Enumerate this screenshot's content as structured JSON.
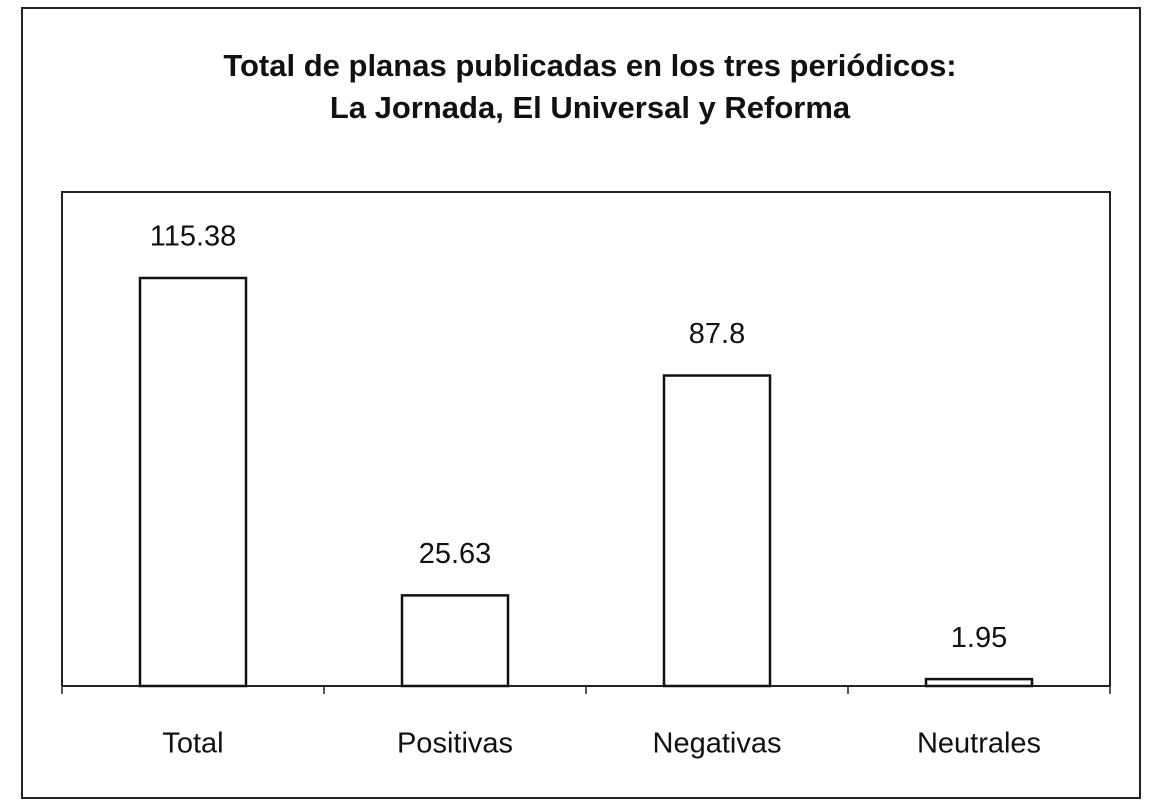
{
  "chart_data": {
    "type": "bar",
    "title": [
      "Total de planas publicadas en los tres periódicos:",
      "La Jornada, El Universal y Reforma"
    ],
    "categories": [
      "Total",
      "Positivas",
      "Negativas",
      "Neutrales"
    ],
    "values": [
      115.38,
      25.63,
      87.8,
      1.95
    ],
    "color": "#ffffff"
  }
}
